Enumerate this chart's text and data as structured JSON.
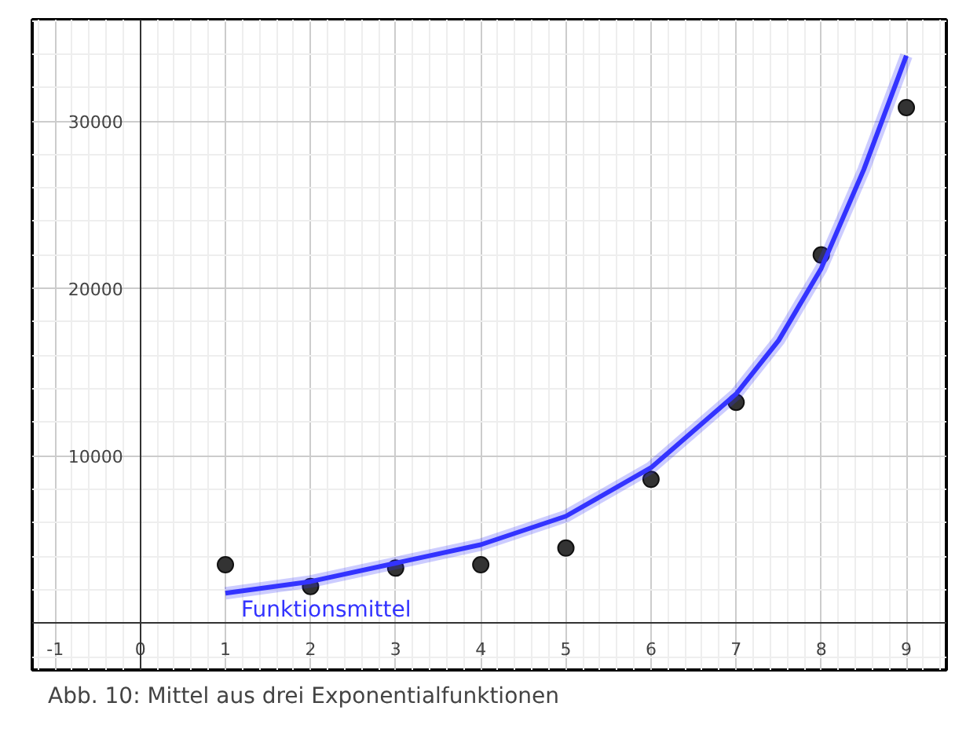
{
  "chart_data": {
    "type": "scatter",
    "series": [
      {
        "color": "#333333",
        "marker": "circle",
        "x": [
          1,
          2,
          3,
          4,
          5,
          6,
          7,
          8,
          9
        ],
        "values": [
          3500,
          2200,
          3300,
          3500,
          4500,
          8600,
          13200,
          22000,
          30800
        ]
      },
      {
        "type": "line",
        "marker": "none",
        "name": "Funktionsmittel",
        "color": "#3333ff",
        "x": [
          1,
          2,
          3,
          4,
          5,
          6,
          7,
          7.5,
          8,
          8.5,
          9
        ],
        "values": [
          1800,
          2500,
          3600,
          4700,
          6400,
          9300,
          13700,
          16900,
          21200,
          27100,
          33900
        ]
      }
    ],
    "xlim": [
      -1.27,
      9.47
    ],
    "ylim": [
      -2780,
      36050
    ],
    "xticks": [
      -1,
      0,
      1,
      2,
      3,
      4,
      5,
      6,
      7,
      8,
      9
    ],
    "yticks": [
      10000,
      20000,
      30000
    ],
    "grid": true,
    "annotations": [
      "Abb. 10: Mittel aus drei Exponentialfunktionen"
    ]
  }
}
